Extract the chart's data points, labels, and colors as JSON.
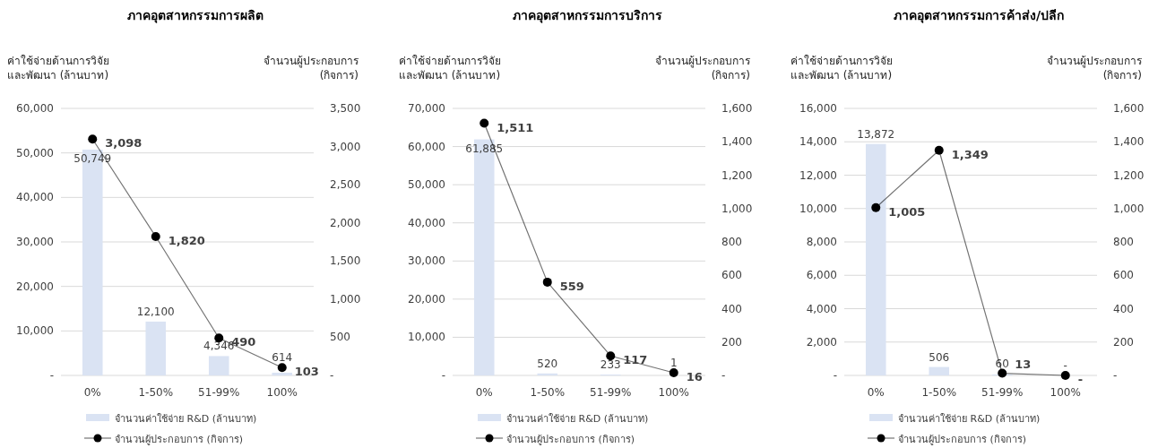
{
  "chart_data": [
    {
      "type": "bar",
      "title": "ภาคอุตสาหกรรมการผลิต",
      "ylabel": "ค่าใช้จ่ายด้านการวิจัย\nและพัฒนา (ล้านบาท)",
      "y2label": "จำนวนผู้ประกอบการ\n(กิจการ)",
      "categories": [
        "0%",
        "1-50%",
        "51-99%",
        "100%"
      ],
      "series": [
        {
          "name": "จำนวนค่าใช้จ่าย R&D (ล้านบาท)",
          "color": "#dae3f3",
          "values": [
            50749,
            12100,
            4346,
            614
          ],
          "value_labels": [
            "50,749",
            "12,100",
            "4,346",
            "614"
          ]
        },
        {
          "name": "จำนวนผู้ประกอบการ (กิจการ)",
          "type": "line",
          "axis": "y2",
          "marker": "circle",
          "color": "#000000",
          "values": [
            3098,
            1820,
            490,
            103
          ],
          "value_labels": [
            "3,098",
            "1,820",
            "490",
            "103"
          ]
        }
      ],
      "ylim": [
        0,
        60000
      ],
      "yticks": [
        {
          "value": 0,
          "label": "-"
        },
        {
          "value": 10000,
          "label": "10,000"
        },
        {
          "value": 20000,
          "label": "20,000"
        },
        {
          "value": 30000,
          "label": "30,000"
        },
        {
          "value": 40000,
          "label": "40,000"
        },
        {
          "value": 50000,
          "label": "50,000"
        },
        {
          "value": 60000,
          "label": "60,000"
        }
      ],
      "y2lim": [
        0,
        3500
      ],
      "y2ticks": [
        {
          "value": 0,
          "label": "-"
        },
        500,
        {
          "value": 1000,
          "label": "1,000"
        },
        {
          "value": 1500,
          "label": "1,500"
        },
        {
          "value": 2000,
          "label": "2,000"
        },
        {
          "value": 2500,
          "label": "2,500"
        },
        {
          "value": 3000,
          "label": "3,000"
        },
        {
          "value": 3500,
          "label": "3,500"
        }
      ],
      "grid": "y",
      "legend": "bottom"
    },
    {
      "type": "bar",
      "title": "ภาคอุตสาหกรรมการบริการ",
      "ylabel": "ค่าใช้จ่ายด้านการวิจัย\nและพัฒนา (ล้านบาท)",
      "y2label": "จำนวนผู้ประกอบการ\n(กิจการ)",
      "categories": [
        "0%",
        "1-50%",
        "51-99%",
        "100%"
      ],
      "series": [
        {
          "name": "จำนวนค่าใช้จ่าย R&D (ล้านบาท)",
          "color": "#dae3f3",
          "values": [
            61885,
            520,
            233,
            1
          ],
          "value_labels": [
            "61,885",
            "520",
            "233",
            "1"
          ]
        },
        {
          "name": "จำนวนผู้ประกอบการ (กิจการ)",
          "type": "line",
          "axis": "y2",
          "marker": "circle",
          "color": "#000000",
          "values": [
            1511,
            559,
            117,
            16
          ],
          "value_labels": [
            "1,511",
            "559",
            "117",
            "16"
          ]
        }
      ],
      "ylim": [
        0,
        70000
      ],
      "yticks": [
        {
          "value": 0,
          "label": "-"
        },
        {
          "value": 10000,
          "label": "10,000"
        },
        {
          "value": 20000,
          "label": "20,000"
        },
        {
          "value": 30000,
          "label": "30,000"
        },
        {
          "value": 40000,
          "label": "40,000"
        },
        {
          "value": 50000,
          "label": "50,000"
        },
        {
          "value": 60000,
          "label": "60,000"
        },
        {
          "value": 70000,
          "label": "70,000"
        }
      ],
      "y2lim": [
        0,
        1600
      ],
      "y2ticks": [
        {
          "value": 0,
          "label": "-"
        },
        200,
        400,
        600,
        800,
        {
          "value": 1000,
          "label": "1,000"
        },
        {
          "value": 1200,
          "label": "1,200"
        },
        {
          "value": 1400,
          "label": "1,400"
        },
        {
          "value": 1600,
          "label": "1,600"
        }
      ],
      "grid": "y",
      "legend": "bottom"
    },
    {
      "type": "bar",
      "title": "ภาคอุตสาหกรรมการค้าส่ง/ปลีก",
      "ylabel": "ค่าใช้จ่ายด้านการวิจัย\nและพัฒนา (ล้านบาท)",
      "y2label": "จำนวนผู้ประกอบการ\n(กิจการ)",
      "categories": [
        "0%",
        "1-50%",
        "51-99%",
        "100%"
      ],
      "series": [
        {
          "name": "จำนวนค่าใช้จ่าย R&D (ล้านบาท)",
          "color": "#dae3f3",
          "values": [
            13872,
            506,
            60,
            0
          ],
          "value_labels": [
            "13,872",
            "506",
            "60",
            "-"
          ]
        },
        {
          "name": "จำนวนผู้ประกอบการ (กิจการ)",
          "type": "line",
          "axis": "y2",
          "marker": "circle",
          "color": "#000000",
          "values": [
            1005,
            1349,
            13,
            0
          ],
          "value_labels": [
            "1,005",
            "1,349",
            "13",
            "-"
          ]
        }
      ],
      "ylim": [
        0,
        16000
      ],
      "yticks": [
        {
          "value": 0,
          "label": "-"
        },
        {
          "value": 2000,
          "label": "2,000"
        },
        {
          "value": 4000,
          "label": "4,000"
        },
        {
          "value": 6000,
          "label": "6,000"
        },
        {
          "value": 8000,
          "label": "8,000"
        },
        {
          "value": 10000,
          "label": "10,000"
        },
        {
          "value": 12000,
          "label": "12,000"
        },
        {
          "value": 14000,
          "label": "14,000"
        },
        {
          "value": 16000,
          "label": "16,000"
        }
      ],
      "y2lim": [
        0,
        1600
      ],
      "y2ticks": [
        {
          "value": 0,
          "label": "-"
        },
        200,
        400,
        600,
        800,
        {
          "value": 1000,
          "label": "1,000"
        },
        {
          "value": 1200,
          "label": "1,200"
        },
        {
          "value": 1400,
          "label": "1,400"
        },
        {
          "value": 1600,
          "label": "1,600"
        }
      ],
      "grid": "y",
      "legend": "bottom"
    }
  ]
}
